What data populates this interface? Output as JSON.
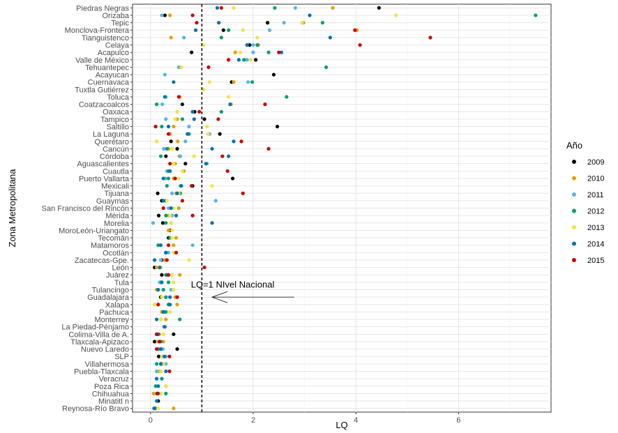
{
  "chart_data": {
    "type": "scatter",
    "title": "",
    "xlabel": "LQ",
    "ylabel": "Zona Metropolitana",
    "xlim": [
      -0.35,
      7.8
    ],
    "x_ticks": [
      0,
      2,
      4,
      6
    ],
    "x_tick_labels": [
      "0",
      "2",
      "4",
      "6"
    ],
    "grid": true,
    "legend_position": "right",
    "legend_title": "Año",
    "reference_line": {
      "x": 1,
      "style": "dashed"
    },
    "annotation": {
      "text": "LQ=1 NIvel Nacional",
      "x": 1.6,
      "category": "Tulancingo",
      "arrow_from_x": 2.8,
      "arrow_to_x": 1.2,
      "arrow_category": "Guadalajara"
    },
    "categories": [
      "Piedras Negras",
      "Orizaba",
      "Tepic",
      "Monclova-Frontera",
      "Tianguistenco",
      "Celaya",
      "Acapulco",
      "Valle de México",
      "Tehuantepec",
      "Acayucan",
      "Cuernavaca",
      "Tuxtla Gutiérrez",
      "Toluca",
      "Coatzacoalcos",
      "Oaxaca",
      "Tampico",
      "Saltillo",
      "La Laguna",
      "Querétaro",
      "Cancún",
      "Córdoba",
      "Aguascalientes",
      "Cuautla",
      "Puerto Vallarta",
      "Mexicali",
      "Tijuana",
      "Guaymas",
      "San Francisco del Rincón",
      "Mérida",
      "Morelia",
      "MoroLeón-Uriangato",
      "Tecomán",
      "Matamoros",
      "Ocotlán",
      "Zacatecas-Gpe.",
      "León",
      "Juárez",
      "Tula",
      "Tulancingo",
      "Guadalajara",
      "Xalapa",
      "Pachuca",
      "Monterrey",
      "La Piedad-Pénjamo",
      "Colima-Villa de A.",
      "Tlaxcala-Apizaco",
      "Nuevo Laredo",
      "SLP",
      "Villahermosa",
      "Puebla-Tlaxcala",
      "Veracruz",
      "Poza Rica",
      "Chihuahua",
      "Minatitl n",
      "Reynosa-Río Bravo"
    ],
    "series": [
      {
        "name": "2009",
        "color": "#000000",
        "values": [
          4.45,
          0.28,
          2.28,
          1.42,
          null,
          1.93,
          0.8,
          2.05,
          null,
          2.4,
          1.58,
          null,
          null,
          0.62,
          0.86,
          1.05,
          2.47,
          1.35,
          0.4,
          0.52,
          0.3,
          0.68,
          null,
          1.6,
          0.82,
          0.14,
          0.22,
          null,
          0.16,
          0.24,
          0.38,
          0.35,
          null,
          0.3,
          0.22,
          0.08,
          0.22,
          0.2,
          null,
          0.2,
          null,
          0.25,
          0.2,
          null,
          0.45,
          0.08,
          0.52,
          0.16,
          0.22,
          0.2,
          null,
          null,
          0.14,
          0.15,
          0.1
        ]
      },
      {
        "name": "2010",
        "color": "#E69F00",
        "values": [
          3.55,
          0.38,
          2.98,
          4.02,
          0.4,
          2.1,
          1.65,
          1.95,
          0.58,
          null,
          1.62,
          1.03,
          0.57,
          1.57,
          null,
          0.52,
          0.45,
          0.38,
          0.53,
          0.35,
          0.56,
          0.48,
          0.65,
          0.45,
          null,
          0.5,
          0.3,
          0.55,
          0.35,
          0.4,
          0.35,
          0.5,
          0.45,
          0.45,
          0.28,
          0.12,
          0.57,
          0.22,
          0.12,
          0.48,
          0.52,
          0.22,
          0.3,
          null,
          0.17,
          0.25,
          0.22,
          null,
          0.2,
          0.17,
          null,
          null,
          0.06,
          null,
          0.45
        ]
      },
      {
        "name": "2011",
        "color": "#56B4E9",
        "values": [
          2.82,
          0.22,
          2.6,
          2.32,
          0.65,
          2.0,
          2.0,
          1.88,
          0.55,
          0.28,
          1.9,
          null,
          0.3,
          0.23,
          null,
          0.3,
          0.75,
          1.15,
          0.68,
          0.26,
          0.58,
          1.1,
          0.32,
          0.3,
          0.58,
          0.42,
          1.27,
          0.35,
          0.42,
          0.05,
          null,
          null,
          0.82,
          0.35,
          0.2,
          0.18,
          0.35,
          0.18,
          0.4,
          0.3,
          0.08,
          0.28,
          0.2,
          0.26,
          0.12,
          0.14,
          0.24,
          0.3,
          0.3,
          0.12,
          0.22,
          0.3,
          0.12,
          null,
          0.1
        ]
      },
      {
        "name": "2012",
        "color": "#009E73",
        "values": [
          2.42,
          7.5,
          3.35,
          1.52,
          1.38,
          2.08,
          2.3,
          1.82,
          3.42,
          null,
          1.98,
          null,
          2.65,
          0.12,
          1.38,
          0.62,
          0.22,
          0.75,
          null,
          0.32,
          0.2,
          null,
          0.35,
          0.35,
          0.32,
          0.58,
          0.3,
          null,
          0.3,
          0.3,
          null,
          0.38,
          0.15,
          0.3,
          0.08,
          0.2,
          0.3,
          0.35,
          0.25,
          0.3,
          0.35,
          0.3,
          0.57,
          null,
          0.12,
          0.2,
          0.15,
          0.22,
          0.12,
          0.2,
          0.22,
          0.1,
          0.3,
          null,
          0.08
        ]
      },
      {
        "name": "2013",
        "color": "#F0E442",
        "values": [
          1.62,
          4.78,
          2.95,
          1.8,
          2.08,
          1.03,
          1.75,
          1.95,
          0.6,
          null,
          1.15,
          1.03,
          1.52,
          null,
          0.52,
          0.48,
          1.1,
          1.12,
          0.12,
          0.42,
          0.85,
          0.45,
          0.62,
          0.55,
          1.2,
          0.55,
          0.32,
          0.45,
          0.38,
          0.4,
          0.42,
          0.42,
          null,
          0.45,
          0.75,
          0.2,
          0.42,
          0.45,
          0.45,
          0.22,
          0.08,
          0.38,
          0.2,
          null,
          0.25,
          0.15,
          0.2,
          0.22,
          0.25,
          0.2,
          null,
          0.3,
          0.2,
          null,
          0.15
        ]
      },
      {
        "name": "2014",
        "color": "#0072B2",
        "values": [
          1.3,
          3.1,
          1.33,
          0.88,
          3.5,
          1.88,
          2.55,
          1.72,
          null,
          null,
          0.45,
          null,
          0.28,
          1.55,
          0.82,
          0.85,
          0.35,
          0.72,
          1.62,
          1.2,
          1.52,
          1.08,
          0.38,
          0.25,
          0.6,
          0.52,
          0.25,
          0.4,
          0.5,
          1.2,
          null,
          null,
          0.2,
          0.3,
          0.08,
          0.18,
          0.32,
          0.22,
          0.15,
          0.38,
          0.38,
          0.25,
          0.12,
          0.28,
          0.15,
          0.18,
          0.2,
          0.27,
          0.2,
          0.3,
          0.12,
          0.15,
          0.15,
          0.12,
          0.07
        ]
      },
      {
        "name": "2015",
        "color": "#CC0000",
        "values": [
          1.38,
          0.82,
          0.9,
          3.98,
          5.45,
          4.08,
          2.5,
          1.52,
          1.13,
          null,
          null,
          null,
          0.55,
          2.23,
          0.95,
          1.32,
          0.1,
          0.35,
          1.77,
          2.3,
          1.4,
          0.38,
          1.5,
          0.48,
          0.8,
          1.8,
          0.62,
          0.25,
          0.82,
          null,
          null,
          null,
          0.35,
          0.5,
          0.32,
          1.05,
          0.35,
          null,
          null,
          0.52,
          0.15,
          null,
          null,
          null,
          0.12,
          0.17,
          0.12,
          0.37,
          null,
          0.37,
          null,
          null,
          0.13,
          null,
          null
        ]
      }
    ]
  }
}
